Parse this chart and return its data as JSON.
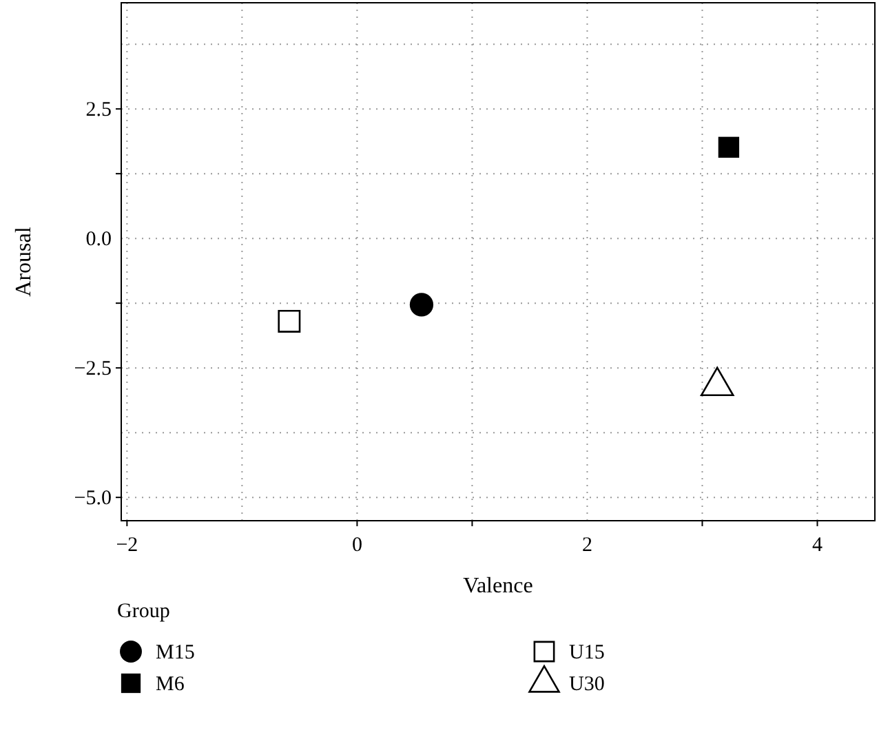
{
  "chart_data": {
    "type": "scatter",
    "xlabel": "Valence",
    "ylabel": "Arousal",
    "legend_title": "Group",
    "legend": "bottom",
    "grid": true,
    "xlim": [
      -2.05,
      4.5
    ],
    "xticks": [
      -2,
      {
        "value": -1,
        "label": null
      },
      0,
      {
        "value": 1,
        "label": null
      },
      2,
      {
        "value": 3,
        "label": null
      },
      4
    ],
    "ylim": [
      -5.45,
      4.55
    ],
    "yticks": [
      {
        "value": -5,
        "label": "−5.0"
      },
      {
        "value": -3.75,
        "label": null
      },
      {
        "value": -2.5,
        "label": "−2.5"
      },
      {
        "value": -1.25,
        "label": null
      },
      {
        "value": 0,
        "label": "0.0"
      },
      {
        "value": 1.25,
        "label": null
      },
      {
        "value": 2.5,
        "label": "2.5"
      },
      {
        "value": 3.75,
        "label": null
      }
    ],
    "series": [
      {
        "name": "M15",
        "color": "#000000",
        "marker": "circle",
        "x": [
          0.56
        ],
        "values": [
          -1.28
        ]
      },
      {
        "name": "M6",
        "color": "#000000",
        "marker": "square",
        "x": [
          3.23
        ],
        "values": [
          1.76
        ]
      },
      {
        "name": "U15",
        "color": "#000000",
        "marker": "square-open",
        "x": [
          -0.59
        ],
        "values": [
          -1.6
        ]
      },
      {
        "name": "U30",
        "color": "#000000",
        "marker": "triangle-open",
        "x": [
          3.13
        ],
        "values": [
          -2.85
        ]
      }
    ]
  }
}
